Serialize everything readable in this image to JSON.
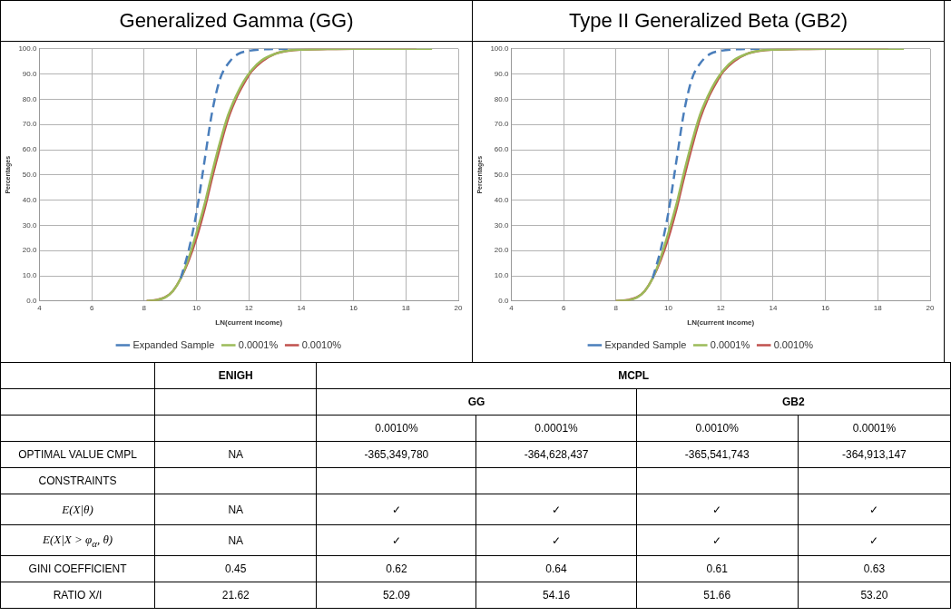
{
  "chart_data": [
    {
      "type": "line",
      "title": "Generalized Gamma (GG)",
      "xlabel": "LN(current income)",
      "ylabel": "Percentages",
      "xlim": [
        4,
        20
      ],
      "xticks": [
        4,
        6,
        8,
        10,
        12,
        14,
        16,
        18,
        20
      ],
      "ylim": [
        0,
        100
      ],
      "yticks": [
        {
          "value": 0,
          "label": "0.0"
        },
        {
          "value": 10,
          "label": "10.0"
        },
        {
          "value": 20,
          "label": "20.0"
        },
        {
          "value": 30,
          "label": "30.0"
        },
        {
          "value": 40,
          "label": "40.0"
        },
        {
          "value": 50,
          "label": "50.0"
        },
        {
          "value": 60,
          "label": "60.0"
        },
        {
          "value": 70,
          "label": "70.0"
        },
        {
          "value": 80,
          "label": "80.0"
        },
        {
          "value": 90,
          "label": "90.0"
        },
        {
          "value": 100,
          "label": "100.0"
        }
      ],
      "grid": true,
      "legend": "bottom",
      "marker": "none",
      "series": [
        {
          "name": "Expanded Sample",
          "color": "#4a7ebb",
          "line_style": "dashed",
          "x": [
            9.4,
            9.7,
            10.0,
            10.3,
            10.6,
            10.9,
            11.2,
            11.6,
            12.0,
            12.6,
            13.5
          ],
          "values": [
            9,
            20,
            35,
            55,
            75,
            88,
            94,
            98,
            99.2,
            99.8,
            100
          ]
        },
        {
          "name": "0.0001%",
          "color": "#9bbb59",
          "line_style": "solid",
          "x": [
            8.1,
            8.5,
            8.8,
            9.1,
            9.4,
            9.7,
            10.0,
            10.3,
            10.6,
            10.9,
            11.2,
            11.5,
            11.8,
            12.1,
            12.5,
            13.0,
            13.5,
            14.0,
            15.0,
            16.0,
            19.0
          ],
          "values": [
            0,
            0.4,
            1.4,
            4,
            9,
            17,
            27,
            38,
            51,
            63,
            73.5,
            81,
            87,
            91.5,
            95.5,
            98,
            99.3,
            99.7,
            99.9,
            100,
            100
          ]
        },
        {
          "name": "0.0010%",
          "color": "#c0504d",
          "line_style": "solid",
          "x": [
            8.1,
            8.5,
            8.8,
            9.1,
            9.4,
            9.7,
            10.0,
            10.3,
            10.6,
            10.9,
            11.2,
            11.5,
            11.8,
            12.1,
            12.5,
            13.0,
            13.5,
            14.0,
            15.0,
            16.0,
            18.4
          ],
          "values": [
            0,
            0.5,
            1.5,
            4,
            9,
            16,
            25,
            36,
            49,
            61,
            72,
            80,
            86,
            91,
            95,
            98,
            99.2,
            99.7,
            99.9,
            100,
            100
          ]
        }
      ]
    },
    {
      "type": "line",
      "title": "Type II Generalized Beta (GB2)",
      "xlabel": "LN(current income)",
      "ylabel": "Percentages",
      "xlim": [
        4,
        20
      ],
      "xticks": [
        4,
        6,
        8,
        10,
        12,
        14,
        16,
        18,
        20
      ],
      "ylim": [
        0,
        100
      ],
      "yticks": [
        {
          "value": 0,
          "label": "0.0"
        },
        {
          "value": 10,
          "label": "10.0"
        },
        {
          "value": 20,
          "label": "20.0"
        },
        {
          "value": 30,
          "label": "30.0"
        },
        {
          "value": 40,
          "label": "40.0"
        },
        {
          "value": 50,
          "label": "50.0"
        },
        {
          "value": 60,
          "label": "60.0"
        },
        {
          "value": 70,
          "label": "70.0"
        },
        {
          "value": 80,
          "label": "80.0"
        },
        {
          "value": 90,
          "label": "90.0"
        },
        {
          "value": 100,
          "label": "100.0"
        }
      ],
      "grid": true,
      "legend": "bottom",
      "marker": "none",
      "series": [
        {
          "name": "Expanded Sample",
          "color": "#4a7ebb",
          "line_style": "dashed",
          "x": [
            9.4,
            9.7,
            10.0,
            10.3,
            10.6,
            10.9,
            11.2,
            11.6,
            12.0,
            12.6,
            13.5
          ],
          "values": [
            9,
            20,
            35,
            55,
            75,
            88,
            94,
            98,
            99.2,
            99.8,
            100
          ]
        },
        {
          "name": "0.0001%",
          "color": "#9bbb59",
          "line_style": "solid",
          "x": [
            8.0,
            8.5,
            8.8,
            9.1,
            9.4,
            9.7,
            10.0,
            10.3,
            10.6,
            10.9,
            11.2,
            11.5,
            11.8,
            12.1,
            12.5,
            13.0,
            13.5,
            14.0,
            15.0,
            16.0,
            19.0
          ],
          "values": [
            0,
            0.4,
            1.4,
            4,
            9,
            17,
            27,
            38,
            51,
            63,
            73.5,
            81,
            87,
            91.5,
            95.5,
            98,
            99.3,
            99.7,
            99.9,
            100,
            100
          ]
        },
        {
          "name": "0.0010%",
          "color": "#c0504d",
          "line_style": "solid",
          "x": [
            8.0,
            8.5,
            8.8,
            9.1,
            9.4,
            9.7,
            10.0,
            10.3,
            10.6,
            10.9,
            11.2,
            11.5,
            11.8,
            12.1,
            12.5,
            13.0,
            13.5,
            14.0,
            15.0,
            16.0,
            18.4
          ],
          "values": [
            0,
            0.5,
            1.5,
            4,
            9,
            16,
            25,
            36,
            49,
            61,
            72,
            80,
            86,
            91,
            95,
            98,
            99.2,
            99.7,
            99.9,
            100,
            100
          ]
        }
      ]
    },
    {
      "type": "other",
      "annotations": [
        "MCPL",
        "GG",
        "GB2"
      ],
      "categories": [
        "ENIGH",
        "0.0010%",
        "0.0001%",
        "0.0010%",
        "0.0001%"
      ],
      "y_categories": [
        "OPTIMAL VALUE CMPL",
        "CONSTRAINTS",
        "E(X|θ)",
        "E(X|X > φ$_{α}$, θ)",
        "GINI  COEFFICIENT",
        "RATIO X/I"
      ],
      "cell_labels": [
        [
          "NA",
          "-365,349,780",
          "-364,628,437",
          "-365,541,743",
          "-364,913,147"
        ],
        [
          null,
          null,
          null,
          null,
          null
        ],
        [
          "NA",
          "✓",
          "✓",
          "✓",
          "✓"
        ],
        [
          "NA",
          "✓",
          "✓",
          "✓",
          "✓"
        ],
        [
          "0.45",
          "0.62",
          "0.64",
          "0.61",
          "0.63"
        ],
        [
          "21.62",
          "52.09",
          "54.16",
          "51.66",
          "53.20"
        ]
      ]
    }
  ]
}
